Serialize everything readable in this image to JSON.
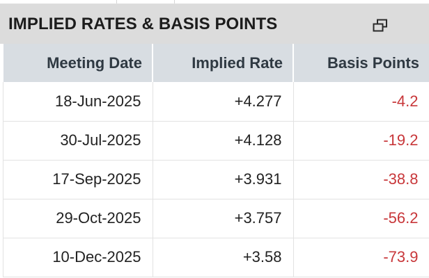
{
  "panel": {
    "title": "IMPLIED RATES & BASIS POINTS",
    "popout_icon": "popout-window-icon"
  },
  "table": {
    "headers": [
      "Meeting Date",
      "Implied Rate",
      "Basis Points"
    ],
    "rows": [
      {
        "date": "18-Jun-2025",
        "rate": "+4.277",
        "bps": "-4.2"
      },
      {
        "date": "30-Jul-2025",
        "rate": "+4.128",
        "bps": "-19.2"
      },
      {
        "date": "17-Sep-2025",
        "rate": "+3.931",
        "bps": "-38.8"
      },
      {
        "date": "29-Oct-2025",
        "rate": "+3.757",
        "bps": "-56.2"
      },
      {
        "date": "10-Dec-2025",
        "rate": "+3.58",
        "bps": "-73.9"
      }
    ]
  },
  "colors": {
    "title_bg": "#dcdcdc",
    "header_bg": "#d8dde2",
    "negative": "#c8373a"
  }
}
